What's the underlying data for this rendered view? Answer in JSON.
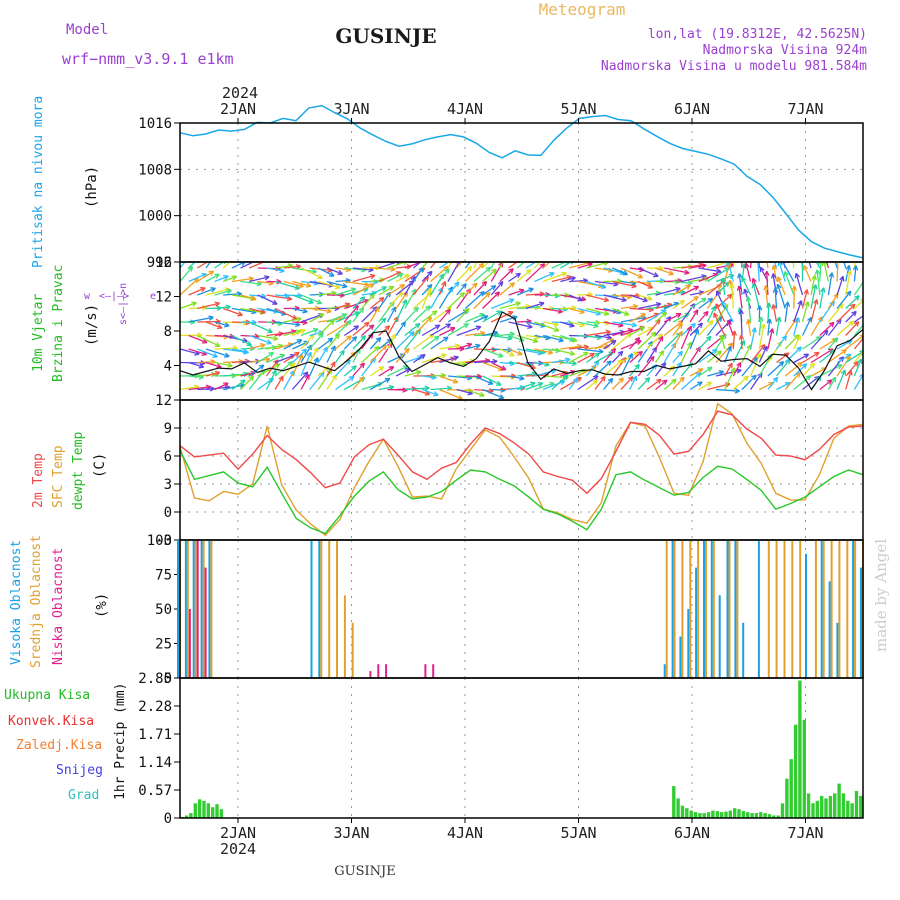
{
  "header": {
    "model_label": "Model",
    "model_name": "wrf−nmm_v3.9.1  e1km",
    "station": "GUSINJE",
    "product": "Meteogram",
    "coords": "lon,lat (19.8312E, 42.5625N)",
    "elevation": "Nadmorska Visina 924m",
    "model_elevation": "Nadmorska Visina u modelu 981.584m"
  },
  "footer": {
    "station": "GUSINJE",
    "credit": "made by Angel"
  },
  "time_axis": {
    "year": "2024",
    "days": [
      "2JAN",
      "3JAN",
      "4JAN",
      "5JAN",
      "6JAN",
      "7JAN"
    ]
  },
  "panel_labels": {
    "pressure": [
      "Pritisak na nivou mora",
      "(hPa)"
    ],
    "wind": [
      "10m Vjetar",
      "Brzina i Pravac",
      "(m/s)"
    ],
    "wind_compass": [
      "w",
      "<–|–>",
      "e",
      "s<–|–>n"
    ],
    "temp": [
      "2m Temp",
      "SFC Temp",
      "dewpt Temp",
      "(C)"
    ],
    "cloud": [
      "Visoka Oblacnost",
      "Srednja Oblacnost",
      "Niska Oblacnost",
      "(%)"
    ],
    "precip_legend": [
      "Ukupna Kisa",
      "Konvek.Kisa",
      "Zaledj.Kisa",
      "Snijeg",
      "Grad"
    ],
    "precip_axis": "1hr Precip (mm)"
  },
  "colors": {
    "pressure": "#1aa7e8",
    "temp2m": "#f04848",
    "sfc": "#e0a030",
    "dew": "#28c828",
    "cloud_high": "#1aa0e6",
    "cloud_mid": "#e0a030",
    "cloud_low": "#e0208c",
    "precip_total": "#33cc33",
    "label_model": "#9a40d0",
    "label_meteo": "#e8b860",
    "label_pressure": "#1aa7e8",
    "label_wind": "#22bb22",
    "label_temp2m": "#f04848",
    "label_sfc": "#e0a030",
    "label_dew": "#22bb22",
    "label_convek": "#e83030",
    "label_zaledj": "#f08030",
    "label_snijeg": "#4040e0",
    "label_grad": "#30c0c0"
  },
  "chart_data": [
    {
      "type": "line",
      "series": [
        {
          "name": "Pritisak na nivou mora",
          "values": [
            1014.3,
            1013.8,
            1014.1,
            1014.8,
            1014.6,
            1014.9,
            1016.1,
            1016.0,
            1016.8,
            1016.4,
            1018.6,
            1019.0,
            1017.8,
            1016.7,
            1015.1,
            1013.9,
            1012.8,
            1012.0,
            1012.4,
            1013.1,
            1013.6,
            1014.0,
            1013.6,
            1012.5,
            1010.9,
            1010.0,
            1011.2,
            1010.5,
            1010.4,
            1013.0,
            1015.1,
            1016.8,
            1017.1,
            1017.3,
            1016.6,
            1016.4,
            1015.0,
            1013.7,
            1012.5,
            1011.6,
            1011.1,
            1010.6,
            1009.8,
            1008.9,
            1006.8,
            1005.4,
            1003.2,
            1000.4,
            997.5,
            995.5,
            994.4,
            993.8,
            993.2,
            992.7
          ]
        }
      ],
      "x_range_days": [
        0,
        6
      ],
      "ylabel": "(hPa)",
      "ylim": [
        992,
        1016
      ],
      "yticks": [
        992,
        1000,
        1008,
        1016
      ],
      "grid": true
    },
    {
      "type": "line",
      "series": [
        {
          "name": "10m Vjetar",
          "values": [
            3.4,
            2.9,
            3.3,
            3.7,
            3.6,
            4.3,
            3.2,
            3.7,
            3.4,
            3.9,
            4.4,
            3.9,
            3.4,
            4.6,
            6.0,
            7.8,
            8.0,
            5.0,
            3.3,
            4.1,
            4.9,
            4.3,
            3.9,
            4.8,
            6.8,
            10.2,
            9.4,
            4.3,
            2.4,
            3.6,
            3.1,
            3.4,
            3.5,
            3.0,
            2.9,
            3.3,
            3.3,
            4.0,
            3.6,
            3.9,
            4.2,
            5.7,
            4.5,
            4.7,
            4.8,
            3.9,
            5.3,
            5.2,
            3.7,
            1.2,
            3.4,
            6.3,
            6.9,
            8.2
          ]
        }
      ],
      "ylabel": "(m/s)",
      "ylim": [
        0,
        16
      ],
      "yticks": [
        4,
        8,
        12,
        16
      ],
      "barbs": "wind direction vectors drawn as colored arrows"
    },
    {
      "type": "line",
      "series": [
        {
          "name": "2m Temp",
          "values": [
            7.1,
            5.9,
            6.1,
            6.3,
            4.6,
            6.2,
            8.2,
            6.7,
            5.6,
            4.2,
            2.6,
            3.1,
            5.9,
            7.2,
            7.8,
            6.1,
            4.3,
            3.5,
            4.7,
            5.3,
            7.3,
            9.0,
            8.4,
            7.4,
            6.2,
            4.3,
            3.8,
            3.4,
            2.0,
            3.6,
            6.5,
            9.6,
            9.4,
            8.2,
            6.2,
            6.5,
            8.3,
            10.8,
            10.4,
            8.9,
            7.9,
            6.1,
            6.0,
            5.6,
            6.7,
            8.3,
            9.1,
            9.2
          ]
        },
        {
          "name": "SFC Temp",
          "values": [
            7.0,
            1.5,
            1.2,
            2.2,
            1.9,
            3.0,
            9.2,
            2.9,
            0.2,
            -1.3,
            -2.5,
            -0.8,
            2.6,
            5.4,
            7.8,
            4.9,
            1.6,
            1.7,
            1.4,
            4.6,
            6.7,
            8.8,
            8.0,
            5.9,
            3.6,
            0.3,
            -0.1,
            -0.8,
            -1.2,
            1.0,
            7.1,
            9.6,
            9.2,
            5.8,
            2.0,
            1.8,
            5.4,
            11.6,
            10.5,
            7.4,
            5.2,
            2.0,
            1.3,
            1.3,
            4.0,
            7.9,
            9.2,
            9.4
          ]
        },
        {
          "name": "dewpt Temp",
          "values": [
            6.6,
            3.5,
            3.9,
            4.3,
            3.1,
            2.7,
            4.8,
            2.0,
            -0.7,
            -1.7,
            -2.3,
            -0.4,
            1.7,
            3.3,
            4.3,
            2.4,
            1.4,
            1.6,
            2.2,
            3.4,
            4.5,
            4.3,
            3.5,
            2.8,
            1.6,
            0.3,
            -0.2,
            -1.0,
            -1.9,
            0.3,
            4.0,
            4.3,
            3.4,
            2.6,
            1.8,
            2.1,
            3.7,
            4.9,
            4.6,
            3.5,
            2.3,
            0.3,
            0.9,
            1.6,
            2.7,
            3.8,
            4.5,
            4.0
          ]
        }
      ],
      "ylabel": "(C)",
      "ylim": [
        -3,
        12
      ],
      "yticks": [
        -3,
        0,
        3,
        6,
        9,
        12
      ],
      "grid": true
    },
    {
      "type": "bar",
      "series": [
        {
          "name": "Visoka Oblacnost",
          "values": [
            100,
            100,
            100,
            100,
            100,
            0,
            0,
            0,
            0,
            0,
            0,
            0,
            0,
            0,
            0,
            0,
            0,
            100,
            100,
            0,
            0,
            0,
            0,
            0,
            0,
            0,
            0,
            0,
            0,
            0,
            0,
            0,
            0,
            0,
            0,
            0,
            0,
            0,
            0,
            0,
            0,
            0,
            0,
            0,
            0,
            0,
            0,
            0,
            0,
            0,
            0,
            0,
            0,
            0,
            0,
            0,
            0,
            0,
            0,
            0,
            0,
            0,
            10,
            100,
            30,
            50,
            80,
            100,
            100,
            60,
            100,
            100,
            40,
            0,
            100,
            0,
            0,
            0,
            0,
            0,
            90,
            0,
            100,
            70,
            40,
            0,
            100,
            80
          ]
        },
        {
          "name": "Srednja Oblacnost",
          "values": [
            100,
            100,
            100,
            100,
            100,
            0,
            0,
            0,
            0,
            0,
            0,
            0,
            0,
            0,
            0,
            0,
            0,
            0,
            100,
            100,
            100,
            60,
            40,
            0,
            0,
            0,
            0,
            0,
            0,
            0,
            0,
            0,
            0,
            0,
            0,
            0,
            0,
            0,
            0,
            0,
            0,
            0,
            0,
            0,
            0,
            0,
            0,
            0,
            0,
            0,
            0,
            0,
            0,
            0,
            0,
            0,
            0,
            0,
            0,
            0,
            0,
            0,
            100,
            100,
            100,
            100,
            100,
            100,
            100,
            0,
            100,
            100,
            0,
            0,
            0,
            100,
            100,
            100,
            100,
            100,
            0,
            100,
            100,
            100,
            100,
            100,
            100,
            100
          ]
        },
        {
          "name": "Niska Oblacnost",
          "values": [
            0,
            50,
            100,
            80,
            0,
            0,
            0,
            0,
            0,
            0,
            0,
            0,
            0,
            0,
            0,
            0,
            0,
            0,
            0,
            0,
            0,
            0,
            0,
            0,
            5,
            10,
            10,
            0,
            0,
            0,
            0,
            10,
            10,
            0,
            0,
            0,
            0,
            0,
            0,
            0,
            0,
            0,
            0,
            0,
            0,
            0,
            0,
            0,
            0,
            0,
            0,
            0,
            0,
            0,
            0,
            0,
            0,
            0,
            0,
            0,
            0,
            0,
            0,
            0,
            0,
            0,
            0,
            0,
            0,
            0,
            0,
            0,
            0,
            0,
            0,
            0,
            0,
            0,
            0,
            0,
            0,
            0,
            0,
            0,
            0,
            0,
            0,
            0
          ]
        }
      ],
      "ylabel": "(%)",
      "ylim": [
        0,
        100
      ],
      "yticks": [
        0,
        25,
        50,
        75,
        100
      ]
    },
    {
      "type": "bar",
      "series": [
        {
          "name": "Ukupna Kisa",
          "values": [
            0.02,
            0.05,
            0.1,
            0.3,
            0.38,
            0.35,
            0.3,
            0.22,
            0.28,
            0.18,
            0,
            0,
            0,
            0,
            0,
            0,
            0,
            0,
            0,
            0,
            0,
            0,
            0,
            0,
            0,
            0,
            0,
            0,
            0,
            0,
            0,
            0,
            0,
            0,
            0,
            0,
            0,
            0,
            0,
            0,
            0,
            0,
            0,
            0,
            0,
            0,
            0,
            0,
            0,
            0,
            0,
            0,
            0,
            0,
            0,
            0,
            0,
            0,
            0,
            0,
            0,
            0,
            0,
            0,
            0,
            0,
            0,
            0,
            0,
            0,
            0,
            0,
            0,
            0,
            0,
            0,
            0,
            0,
            0,
            0,
            0,
            0,
            0,
            0,
            0,
            0,
            0,
            0,
            0,
            0,
            0,
            0,
            0,
            0,
            0,
            0,
            0,
            0,
            0,
            0,
            0,
            0,
            0,
            0,
            0,
            0,
            0,
            0,
            0,
            0,
            0,
            0,
            0,
            0.65,
            0.4,
            0.25,
            0.2,
            0.15,
            0.12,
            0.1,
            0.1,
            0.12,
            0.15,
            0.14,
            0.12,
            0.13,
            0.15,
            0.2,
            0.18,
            0.14,
            0.12,
            0.1,
            0.1,
            0.12,
            0.1,
            0.08,
            0.05,
            0.05,
            0.3,
            0.8,
            1.2,
            1.9,
            2.8,
            2.0,
            0.5,
            0.3,
            0.35,
            0.45,
            0.4,
            0.45,
            0.5,
            0.7,
            0.5,
            0.35,
            0.3,
            0.55,
            0.45
          ]
        }
      ],
      "ylabel": "1hr Precip (mm)",
      "ylim": [
        0,
        2.85
      ],
      "yticks": [
        0,
        0.57,
        1.14,
        1.71,
        2.28,
        2.85
      ]
    }
  ]
}
